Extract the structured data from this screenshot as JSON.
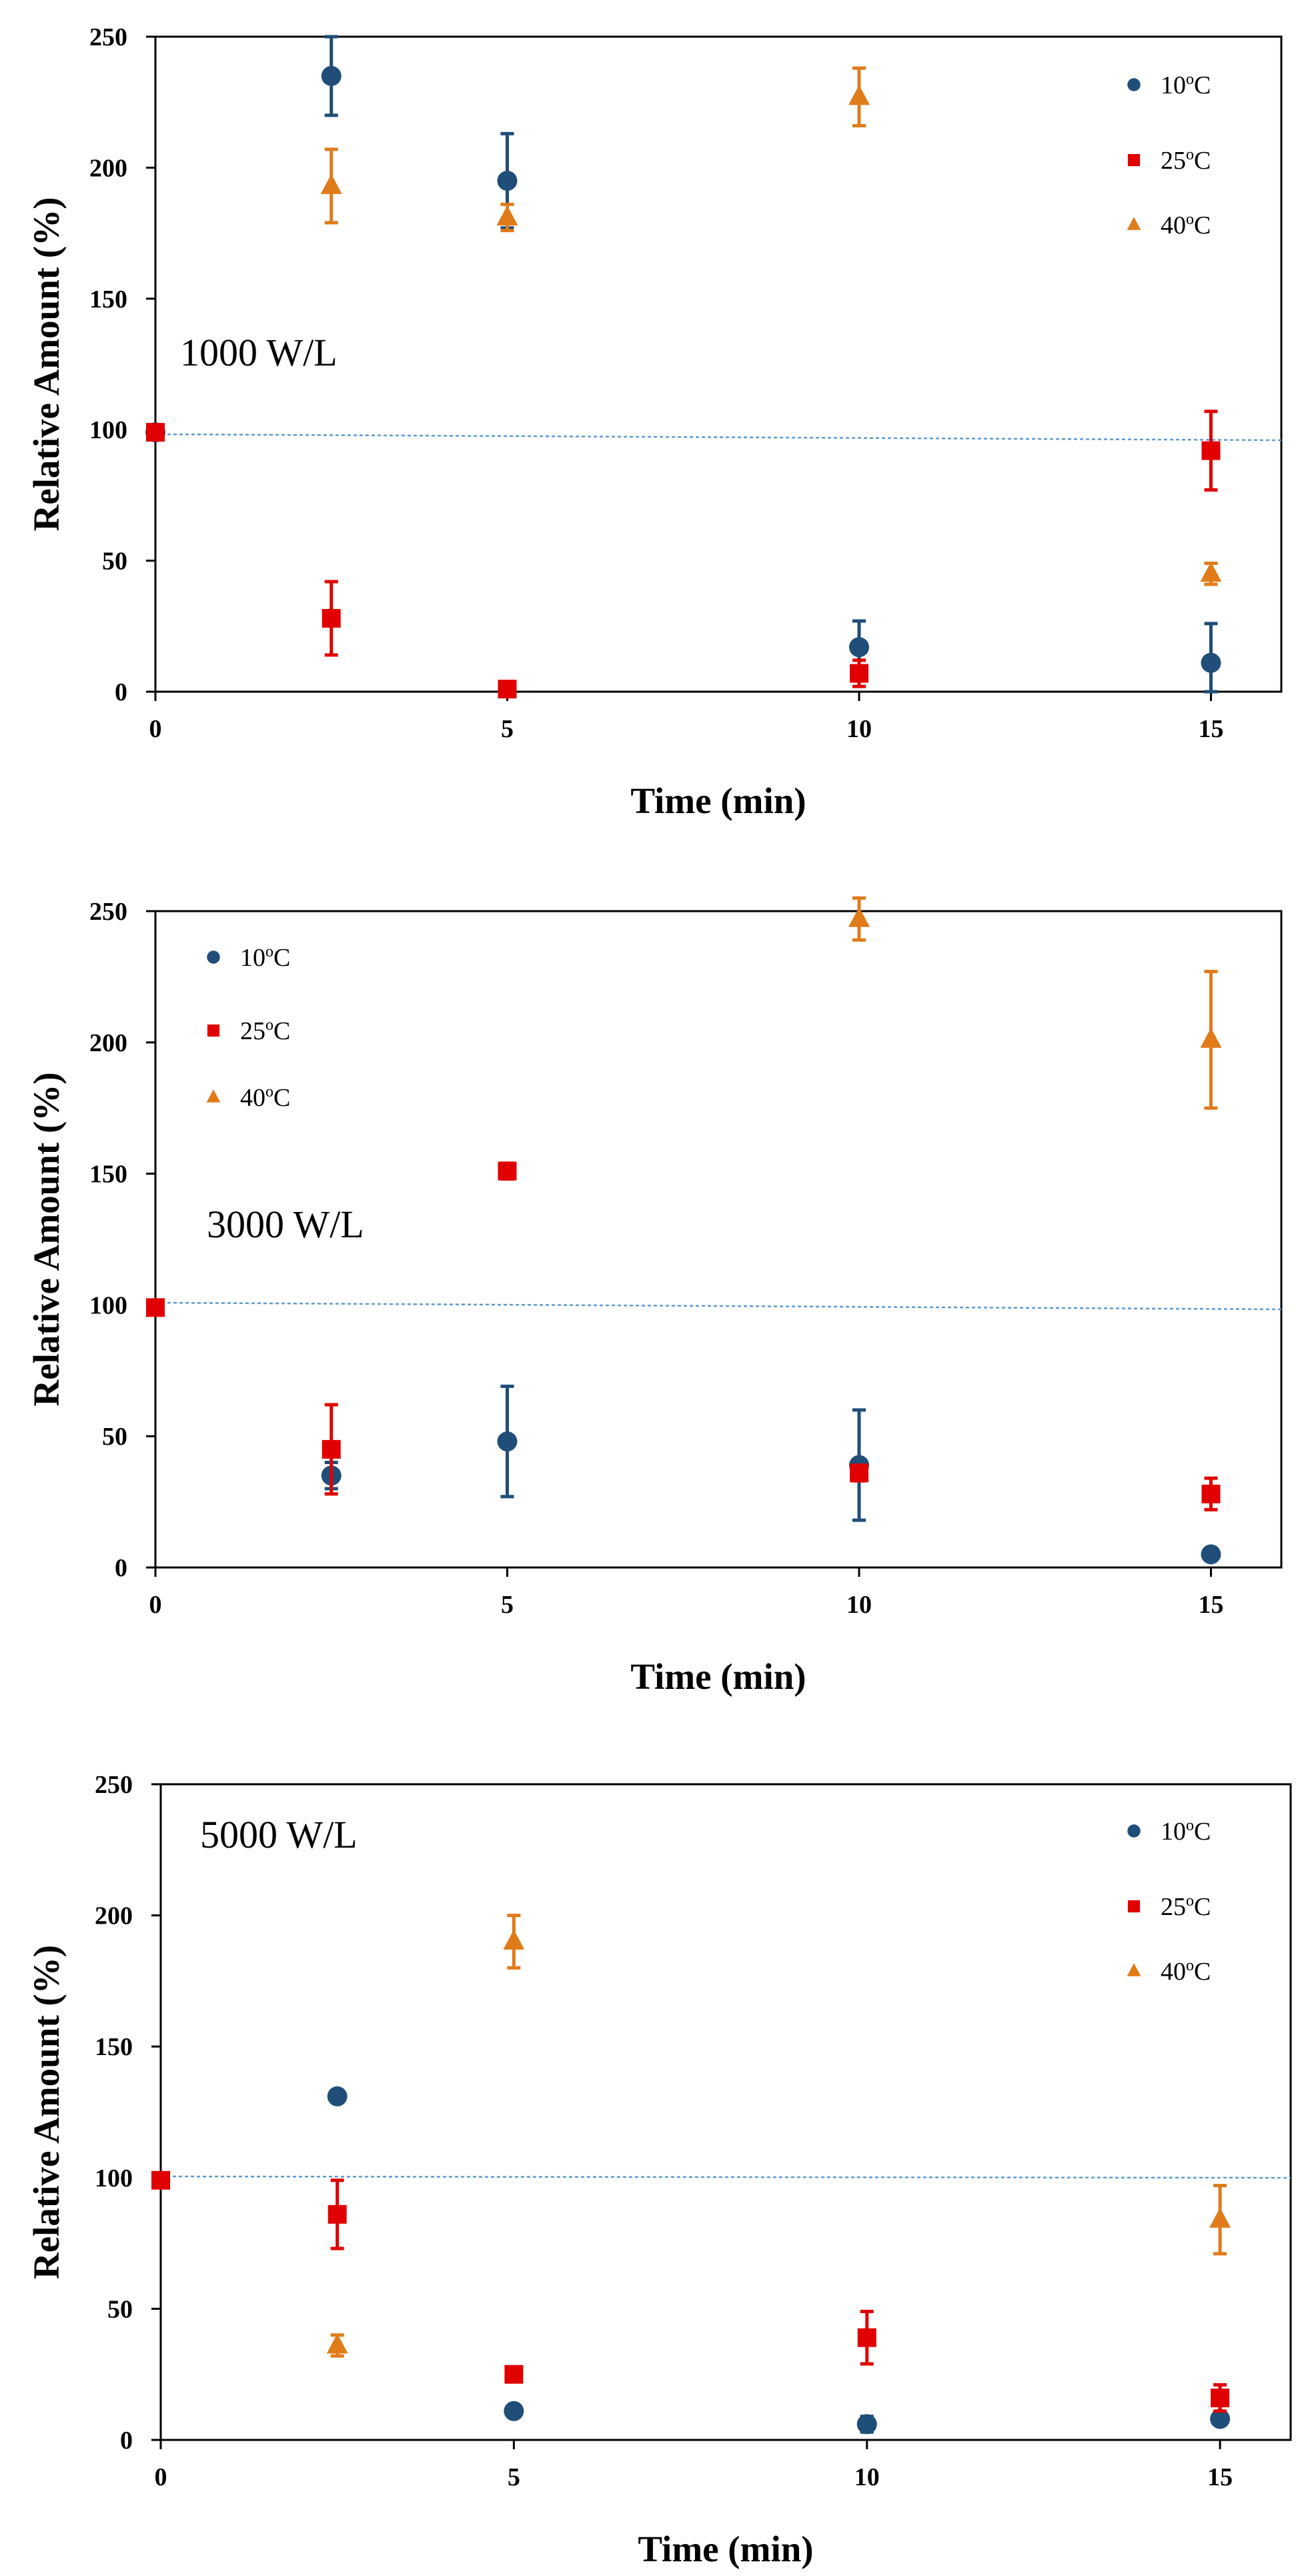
{
  "colors": {
    "s10": "#1f4e79",
    "s25": "#e00000",
    "s40": "#e07b1a",
    "refline": "#5b9bd5"
  },
  "chart_data": [
    {
      "type": "scatter",
      "title": "",
      "panel_label": "1000 W/L",
      "xlabel": "Time (min)",
      "ylabel": "Relative Amount (%)",
      "xlim": [
        0,
        16
      ],
      "ylim": [
        0,
        250
      ],
      "xticks": [
        "0",
        "5",
        "10",
        "15"
      ],
      "yticks": [
        "0",
        "50",
        "100",
        "150",
        "200",
        "250"
      ],
      "legend_position": "top-right",
      "reference_line": 97,
      "series": [
        {
          "name": "10",
          "sup": "o",
          "unit": "C",
          "marker": "circle",
          "color_key": "s10",
          "points": [
            [
              0,
              99,
              0
            ],
            [
              2.5,
              235,
              15
            ],
            [
              5,
              195,
              18
            ],
            [
              10,
              17,
              10
            ],
            [
              15,
              11,
              15
            ]
          ]
        },
        {
          "name": "25",
          "sup": "o",
          "unit": "C",
          "marker": "square",
          "color_key": "s25",
          "points": [
            [
              0,
              99,
              0
            ],
            [
              2.5,
              28,
              14
            ],
            [
              5,
              1,
              0
            ],
            [
              10,
              7,
              5
            ],
            [
              15,
              92,
              15
            ]
          ]
        },
        {
          "name": "40",
          "sup": "o",
          "unit": "C",
          "marker": "triangle",
          "color_key": "s40",
          "points": [
            [
              2.5,
              193,
              14
            ],
            [
              5,
              181,
              5
            ],
            [
              10,
              227,
              11
            ],
            [
              15,
              45,
              4
            ]
          ]
        }
      ]
    },
    {
      "type": "scatter",
      "title": "",
      "panel_label": "3000 W/L",
      "xlabel": "Time (min)",
      "ylabel": "Relative Amount (%)",
      "xlim": [
        0,
        16
      ],
      "ylim": [
        0,
        250
      ],
      "xticks": [
        "0",
        "5",
        "10",
        "15"
      ],
      "yticks": [
        "0",
        "50",
        "100",
        "150",
        "200",
        "250"
      ],
      "legend_position": "top-left",
      "reference_line": 99,
      "series": [
        {
          "name": "10",
          "sup": "o",
          "unit": "C",
          "marker": "circle",
          "color_key": "s10",
          "points": [
            [
              2.5,
              35,
              5
            ],
            [
              5,
              48,
              21
            ],
            [
              10,
              39,
              21
            ],
            [
              15,
              5,
              0
            ]
          ]
        },
        {
          "name": "25",
          "sup": "o",
          "unit": "C",
          "marker": "square",
          "color_key": "s25",
          "points": [
            [
              0,
              99,
              0
            ],
            [
              2.5,
              45,
              17
            ],
            [
              5,
              151,
              3
            ],
            [
              10,
              36,
              3
            ],
            [
              15,
              28,
              6
            ]
          ]
        },
        {
          "name": "40",
          "sup": "o",
          "unit": "C",
          "marker": "triangle",
          "color_key": "s40",
          "points": [
            [
              10,
              247,
              8
            ],
            [
              15,
              201,
              26
            ]
          ]
        }
      ]
    },
    {
      "type": "scatter",
      "title": "",
      "panel_label": "5000 W/L",
      "xlabel": "Time (min)",
      "ylabel": "Relative Amount (%)",
      "xlim": [
        0,
        16
      ],
      "ylim": [
        0,
        250
      ],
      "xticks": [
        "0",
        "5",
        "10",
        "15"
      ],
      "yticks": [
        "0",
        "50",
        "100",
        "150",
        "200",
        "250"
      ],
      "legend_position": "top-right",
      "reference_line": 99,
      "series": [
        {
          "name": "10",
          "sup": "o",
          "unit": "C",
          "marker": "circle",
          "color_key": "s10",
          "points": [
            [
              2.5,
              131,
              0
            ],
            [
              5,
              11,
              0
            ],
            [
              10,
              6,
              3
            ],
            [
              15,
              8,
              2
            ]
          ]
        },
        {
          "name": "25",
          "sup": "o",
          "unit": "C",
          "marker": "square",
          "color_key": "s25",
          "points": [
            [
              0,
              99,
              0
            ],
            [
              2.5,
              86,
              13
            ],
            [
              5,
              25,
              0
            ],
            [
              10,
              39,
              10
            ],
            [
              15,
              16,
              5
            ]
          ]
        },
        {
          "name": "40",
          "sup": "o",
          "unit": "C",
          "marker": "triangle",
          "color_key": "s40",
          "points": [
            [
              2.5,
              36,
              4
            ],
            [
              5,
              190,
              10
            ],
            [
              15,
              84,
              13
            ]
          ]
        }
      ]
    }
  ]
}
